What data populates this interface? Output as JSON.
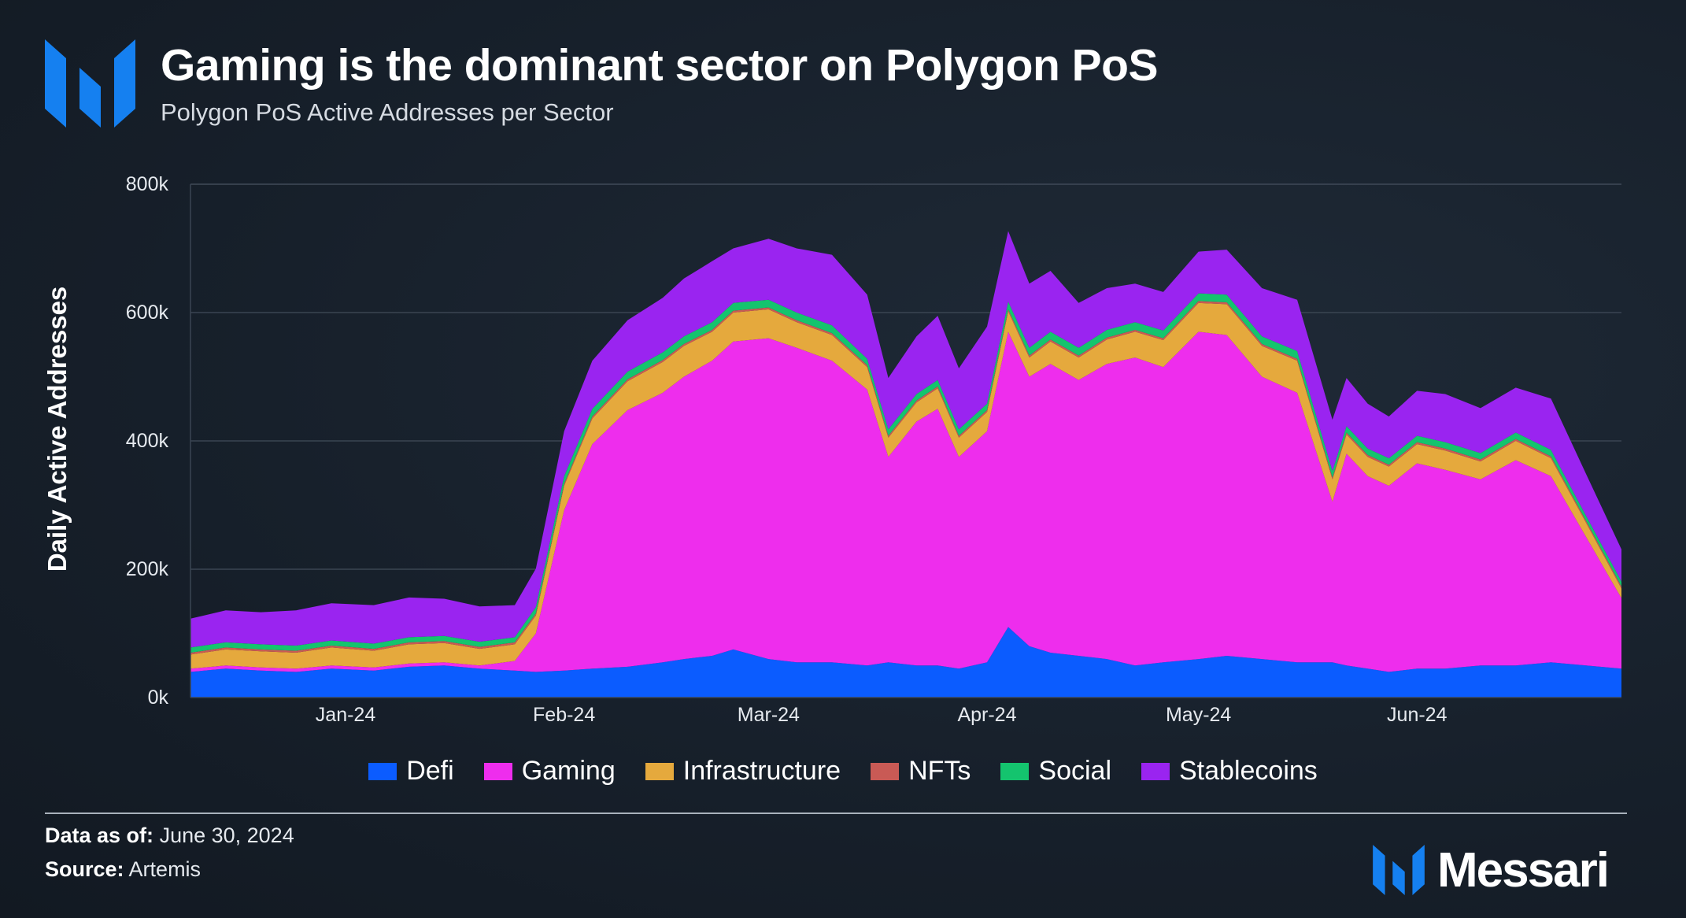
{
  "header": {
    "title": "Gaming is the dominant sector on Polygon PoS",
    "subtitle": "Polygon PoS Active Addresses per Sector"
  },
  "footer": {
    "data_as_of_label": "Data as of:",
    "data_as_of_value": "June 30, 2024",
    "source_label": "Source:",
    "source_value": "Artemis",
    "brand": "Messari"
  },
  "colors": {
    "Defi": "#0b5cff",
    "Gaming": "#ee2ded",
    "Infrastructure": "#e5a93d",
    "NFTs": "#c95a55",
    "Social": "#14c46e",
    "Stablecoins": "#9a24f0",
    "logo": "#1580f0"
  },
  "chart_data": {
    "type": "area",
    "stacked": true,
    "ylabel": "Daily Active Addresses",
    "ylim": [
      0,
      800000
    ],
    "yticks": [
      0,
      200000,
      400000,
      600000,
      800000
    ],
    "ytick_labels": [
      "0k",
      "200k",
      "400k",
      "600k",
      "800k"
    ],
    "xlim": [
      "2023-12-10",
      "2024-06-30"
    ],
    "xticks": [
      "2024-01-01",
      "2024-02-01",
      "2024-03-01",
      "2024-04-01",
      "2024-05-01",
      "2024-06-01"
    ],
    "xtick_labels": [
      "Jan-24",
      "Feb-24",
      "Mar-24",
      "Apr-24",
      "May-24",
      "Jun-24"
    ],
    "grid": true,
    "legend_position": "bottom",
    "x": [
      "2023-12-10",
      "2023-12-15",
      "2023-12-20",
      "2023-12-25",
      "2023-12-30",
      "2024-01-05",
      "2024-01-10",
      "2024-01-15",
      "2024-01-20",
      "2024-01-25",
      "2024-01-28",
      "2024-02-01",
      "2024-02-05",
      "2024-02-10",
      "2024-02-15",
      "2024-02-18",
      "2024-02-22",
      "2024-02-25",
      "2024-03-01",
      "2024-03-05",
      "2024-03-10",
      "2024-03-15",
      "2024-03-18",
      "2024-03-22",
      "2024-03-25",
      "2024-03-28",
      "2024-04-01",
      "2024-04-04",
      "2024-04-07",
      "2024-04-10",
      "2024-04-14",
      "2024-04-18",
      "2024-04-22",
      "2024-04-26",
      "2024-05-01",
      "2024-05-05",
      "2024-05-10",
      "2024-05-15",
      "2024-05-20",
      "2024-05-22",
      "2024-05-25",
      "2024-05-28",
      "2024-06-01",
      "2024-06-05",
      "2024-06-10",
      "2024-06-15",
      "2024-06-20",
      "2024-06-25",
      "2024-06-30"
    ],
    "series": [
      {
        "name": "Defi",
        "values": [
          40000,
          45000,
          42000,
          40000,
          45000,
          42000,
          48000,
          50000,
          45000,
          42000,
          40000,
          42000,
          45000,
          48000,
          55000,
          60000,
          65000,
          75000,
          60000,
          55000,
          55000,
          50000,
          55000,
          50000,
          50000,
          45000,
          55000,
          110000,
          80000,
          70000,
          65000,
          60000,
          50000,
          55000,
          60000,
          65000,
          60000,
          55000,
          55000,
          50000,
          45000,
          40000,
          45000,
          45000,
          50000,
          50000,
          55000,
          50000,
          45000
        ]
      },
      {
        "name": "Gaming",
        "values": [
          5000,
          5000,
          5000,
          5000,
          5000,
          5000,
          5000,
          5000,
          5000,
          15000,
          60000,
          250000,
          350000,
          400000,
          420000,
          440000,
          460000,
          480000,
          500000,
          490000,
          470000,
          430000,
          320000,
          380000,
          400000,
          330000,
          360000,
          460000,
          420000,
          450000,
          430000,
          460000,
          480000,
          460000,
          510000,
          500000,
          440000,
          420000,
          250000,
          330000,
          300000,
          290000,
          320000,
          310000,
          290000,
          320000,
          290000,
          200000,
          110000
        ]
      },
      {
        "name": "Infrastructure",
        "values": [
          22000,
          25000,
          25000,
          25000,
          28000,
          26000,
          30000,
          30000,
          26000,
          26000,
          28000,
          38000,
          40000,
          45000,
          48000,
          48000,
          45000,
          45000,
          45000,
          40000,
          40000,
          35000,
          30000,
          30000,
          32000,
          30000,
          30000,
          32000,
          30000,
          35000,
          35000,
          38000,
          40000,
          42000,
          45000,
          48000,
          48000,
          50000,
          35000,
          30000,
          30000,
          30000,
          30000,
          30000,
          28000,
          30000,
          28000,
          22000,
          15000
        ]
      },
      {
        "name": "NFTs",
        "values": [
          3000,
          3000,
          3000,
          3000,
          3000,
          3000,
          3000,
          3000,
          3000,
          3000,
          3000,
          3000,
          3000,
          3000,
          3000,
          3000,
          3000,
          3000,
          3000,
          3000,
          3000,
          3000,
          3000,
          3000,
          3000,
          3000,
          3000,
          3000,
          3000,
          3000,
          3000,
          3000,
          3000,
          3000,
          3000,
          3000,
          3000,
          3000,
          3000,
          3000,
          3000,
          3000,
          3000,
          3000,
          3000,
          3000,
          3000,
          3000,
          3000
        ]
      },
      {
        "name": "Social",
        "values": [
          8000,
          8000,
          8000,
          8000,
          8000,
          8000,
          8000,
          8000,
          8000,
          8000,
          10000,
          12000,
          12000,
          12000,
          12000,
          12000,
          12000,
          12000,
          12000,
          12000,
          12000,
          10000,
          10000,
          10000,
          10000,
          10000,
          10000,
          12000,
          12000,
          12000,
          12000,
          12000,
          12000,
          12000,
          12000,
          12000,
          12000,
          12000,
          10000,
          10000,
          10000,
          10000,
          10000,
          10000,
          10000,
          10000,
          10000,
          8000,
          8000
        ]
      },
      {
        "name": "Stablecoins",
        "values": [
          45000,
          50000,
          50000,
          55000,
          58000,
          60000,
          62000,
          58000,
          55000,
          50000,
          60000,
          70000,
          75000,
          80000,
          85000,
          90000,
          95000,
          85000,
          95000,
          100000,
          110000,
          100000,
          80000,
          90000,
          100000,
          95000,
          120000,
          110000,
          100000,
          95000,
          70000,
          65000,
          60000,
          60000,
          65000,
          70000,
          75000,
          80000,
          80000,
          75000,
          70000,
          65000,
          70000,
          75000,
          70000,
          70000,
          80000,
          65000,
          50000
        ]
      }
    ]
  }
}
